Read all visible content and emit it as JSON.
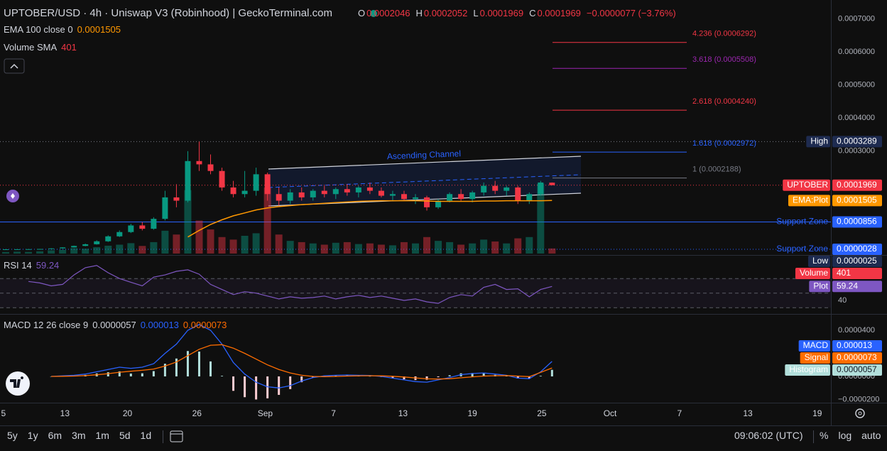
{
  "chart_data": [
    {
      "type": "candlestick",
      "x": [
        0.5,
        1.5,
        2.5,
        3.5,
        4.5,
        5.5,
        6.5,
        7.5,
        8.5,
        9.5,
        10.5,
        11.5,
        12.5,
        13.5,
        14.5,
        15.5,
        16.5,
        17.5,
        18.5,
        19.5,
        20.5,
        21.5,
        22.5,
        23.5,
        24.5,
        25.5,
        26.5,
        27.5,
        28.5,
        29.5,
        30.5,
        31.5,
        32.5,
        33.5,
        34.5,
        35.5,
        36.5,
        37.5,
        38.5,
        39.5,
        40.5,
        41.5,
        42.5,
        43.5,
        44.5,
        45.5,
        46.5,
        47.5,
        48.5
      ],
      "ohlc": [
        [
          2.8e-06,
          3e-06,
          2.5e-06,
          2.8e-06
        ],
        [
          2.8e-06,
          3.2e-06,
          2.7e-06,
          3e-06
        ],
        [
          3e-06,
          3.5e-06,
          2.9e-06,
          3.3e-06
        ],
        [
          3.3e-06,
          4e-06,
          3.1e-06,
          3.8e-06
        ],
        [
          3.8e-06,
          6e-06,
          3.6e-06,
          5.5e-06
        ],
        [
          5.5e-06,
          9e-06,
          5e-06,
          8.5e-06
        ],
        [
          8.5e-06,
          1.4e-05,
          8e-06,
          1.3e-05
        ],
        [
          1.3e-05,
          2e-05,
          1.2e-05,
          1.8e-05
        ],
        [
          1.8e-05,
          3e-05,
          1.7e-05,
          2.7e-05
        ],
        [
          2.7e-05,
          4.5e-05,
          2.5e-05,
          4.2e-05
        ],
        [
          4.2e-05,
          6e-05,
          4e-05,
          5.5e-05
        ],
        [
          5.5e-05,
          8e-05,
          5.2e-05,
          7.5e-05
        ],
        [
          7.5e-05,
          8.5e-05,
          6e-05,
          6.5e-05
        ],
        [
          6.5e-05,
          0.0001,
          6.2e-05,
          9.5e-05
        ],
        [
          9.5e-05,
          0.00018,
          9e-05,
          0.00016
        ],
        [
          0.00016,
          0.0002,
          0.00013,
          0.00015
        ],
        [
          0.00015,
          0.0003,
          0.000145,
          0.00027
        ],
        [
          0.00027,
          0.0003289,
          0.00024,
          0.00026
        ],
        [
          0.00026,
          0.00029,
          0.00023,
          0.00024
        ],
        [
          0.00024,
          0.00025,
          0.00018,
          0.00019
        ],
        [
          0.00019,
          0.00021,
          0.00016,
          0.00017
        ],
        [
          0.00017,
          0.00024,
          0.00016,
          0.00018
        ],
        [
          0.00018,
          0.00025,
          0.000165,
          0.00023
        ],
        [
          0.00023,
          0.000235,
          0.00015,
          0.00017
        ],
        [
          0.00017,
          0.00019,
          0.000135,
          0.00015
        ],
        [
          0.00015,
          0.000185,
          0.00014,
          0.000175
        ],
        [
          0.000175,
          0.00019,
          0.00015,
          0.00016
        ],
        [
          0.00016,
          0.000185,
          0.00015,
          0.00018
        ],
        [
          0.00018,
          0.000195,
          0.00016,
          0.00017
        ],
        [
          0.00017,
          0.00019,
          0.000155,
          0.000185
        ],
        [
          0.000185,
          0.0002,
          0.000165,
          0.000175
        ],
        [
          0.000175,
          0.000195,
          0.00016,
          0.00019
        ],
        [
          0.00019,
          0.000205,
          0.00017,
          0.00018
        ],
        [
          0.00018,
          0.00019,
          0.00016,
          0.000165
        ],
        [
          0.000165,
          0.00018,
          0.00015,
          0.00017
        ],
        [
          0.00017,
          0.00018,
          0.00015,
          0.000155
        ],
        [
          0.000155,
          0.00017,
          0.00014,
          0.00016
        ],
        [
          0.00016,
          0.000165,
          0.00012,
          0.00013
        ],
        [
          0.00013,
          0.000155,
          0.000125,
          0.00015
        ],
        [
          0.00015,
          0.000175,
          0.000145,
          0.00017
        ],
        [
          0.00017,
          0.000185,
          0.00015,
          0.000155
        ],
        [
          0.000155,
          0.00018,
          0.000145,
          0.000175
        ],
        [
          0.000175,
          0.000205,
          0.000165,
          0.000195
        ],
        [
          0.000195,
          0.00021,
          0.00017,
          0.00018
        ],
        [
          0.00018,
          0.000195,
          0.000165,
          0.00019
        ],
        [
          0.00019,
          0.000195,
          0.00014,
          0.00015
        ],
        [
          0.00015,
          0.000175,
          0.00014,
          0.00017
        ],
        [
          0.00017,
          0.00021,
          0.000165,
          0.000205
        ],
        [
          0.0002046,
          0.0002052,
          0.0001969,
          0.0001969
        ]
      ],
      "up_color": "#089981",
      "down_color": "#f23645",
      "xlim": [
        0,
        73
      ],
      "xticks": [
        {
          "value": 0.3,
          "label": "5"
        },
        {
          "value": 5.7,
          "label": "13"
        },
        {
          "value": 11.2,
          "label": "20"
        },
        {
          "value": 17.3,
          "label": "26"
        },
        {
          "value": 23.3,
          "label": "Sep"
        },
        {
          "value": 29.3,
          "label": "7"
        },
        {
          "value": 35.4,
          "label": "13"
        },
        {
          "value": 41.5,
          "label": "19"
        },
        {
          "value": 47.6,
          "label": "25"
        },
        {
          "value": 53.6,
          "label": "Oct"
        },
        {
          "value": 59.7,
          "label": "7"
        },
        {
          "value": 65.7,
          "label": "13"
        },
        {
          "value": 71.8,
          "label": "19"
        }
      ],
      "ylim": [
        -1.01e-05,
        0.0007577
      ],
      "yticks": [
        {
          "value": 0.0007,
          "label": "0.0007000"
        },
        {
          "value": 0.0006,
          "label": "0.0006000"
        },
        {
          "value": 0.0005,
          "label": "0.0005000"
        },
        {
          "value": 0.0004,
          "label": "0.0004000"
        },
        {
          "value": 0.0003,
          "label": "0.0003000"
        }
      ],
      "grid": false,
      "symbol_tag": "UPTOBER",
      "volume": {
        "name": "Volume",
        "color": "#f23645",
        "ylim": [
          0,
          5600
        ],
        "values": [
          120,
          150,
          130,
          180,
          260,
          300,
          420,
          380,
          500,
          620,
          700,
          820,
          600,
          900,
          1800,
          1500,
          5000,
          2600,
          1900,
          1300,
          1100,
          1400,
          1600,
          5200,
          1500,
          1000,
          900,
          800,
          700,
          850,
          900,
          750,
          800,
          700,
          650,
          900,
          800,
          1300,
          1000,
          900,
          700,
          800,
          1100,
          950,
          800,
          1200,
          1300,
          5500,
          401
        ]
      },
      "ema": {
        "name": "EMA:Plot",
        "color": "#ff9800",
        "values": [
          null,
          null,
          null,
          null,
          null,
          null,
          null,
          null,
          null,
          null,
          null,
          null,
          null,
          null,
          null,
          null,
          4e-05,
          6e-05,
          7.8e-05,
          9.2e-05,
          0.000104,
          0.000113,
          0.000122,
          0.000128,
          0.000132,
          0.000135,
          0.000138,
          0.00014,
          0.000142,
          0.000144,
          0.000146,
          0.000148,
          0.000149,
          0.00015,
          0.00015,
          0.00015,
          0.00015,
          0.000149,
          0.000148,
          0.000148,
          0.000148,
          0.000148,
          0.000149,
          0.000149,
          0.00015,
          0.00015,
          0.00015,
          0.00015,
          0.0001505
        ]
      },
      "levels": [
        {
          "name": "High",
          "value": 0.0003289,
          "color": "#1e2b50",
          "line": "dotted",
          "line_color": "#787b86"
        },
        {
          "name": "Support Zone",
          "value": 8.56e-05,
          "color": "#2962ff",
          "line": "solid",
          "line_color": "#2962ff",
          "outside": true
        },
        {
          "name": "Support Zone",
          "value": 2.8e-06,
          "color": "#2962ff",
          "line": "dotted",
          "line_color": "#2962ff",
          "outside": true
        },
        {
          "name": "Low",
          "value": 2.5e-06,
          "color": "#1e2b50"
        }
      ],
      "fib": [
        {
          "label": "4.236 (0.0006292)",
          "value": 0.0006292,
          "color": "#f23645"
        },
        {
          "label": "3.618 (0.0005508)",
          "value": 0.0005508,
          "color": "#9c27b0"
        },
        {
          "label": "2.618 (0.0004240)",
          "value": 0.000424,
          "color": "#f23645"
        },
        {
          "label": "1.618 (0.0002972)",
          "value": 0.0002972,
          "color": "#2962ff"
        },
        {
          "label": "1 (0.0002188)",
          "value": 0.0002188,
          "color": "#787b86"
        }
      ],
      "annotation": "Ascending Channel"
    },
    {
      "type": "line",
      "title": "RSI 14",
      "series": [
        {
          "name": "Plot",
          "color": "#7e57c2",
          "values": [
            null,
            null,
            66,
            64,
            60,
            62,
            75,
            85,
            88,
            78,
            70,
            65,
            60,
            72,
            75,
            80,
            82,
            76,
            62,
            55,
            48,
            52,
            50,
            46,
            42,
            45,
            43,
            44,
            46,
            42,
            45,
            47,
            44,
            46,
            43,
            40,
            42,
            38,
            36,
            44,
            48,
            46,
            58,
            62,
            55,
            56,
            45,
            55,
            59.24
          ]
        }
      ],
      "ylim": [
        23.4,
        99.5
      ],
      "yticks": [
        80,
        40
      ],
      "levels": [
        70,
        50,
        30
      ]
    },
    {
      "type": "macd",
      "title": "MACD 12 26 close 9",
      "series": [
        {
          "name": "Histogram",
          "color": "#b2dfdb",
          "negative_color": "#ffcdd2",
          "values": [
            null,
            null,
            null,
            null,
            0,
            4e-07,
            7e-07,
            1.3e-06,
            2.6e-06,
            3.6e-06,
            4.4e-06,
            2.5e-06,
            2.7e-06,
            4.6e-06,
            1.1e-05,
            1.55e-05,
            2.2e-05,
            2.15e-05,
            1.3e-05,
            5e-07,
            -1.25e-05,
            -1.8e-05,
            -2e-05,
            -1.9e-05,
            -1.6e-05,
            -1.1e-05,
            -5e-06,
            -1e-06,
            7e-07,
            1e-06,
            9e-07,
            5e-07,
            2e-07,
            -5e-07,
            -1.6e-06,
            -2.5e-06,
            -3.2e-06,
            -2.9e-06,
            -7e-07,
            1e-06,
            2.7e-06,
            2.9e-06,
            2.7e-06,
            1.4e-06,
            3e-07,
            -1.8e-06,
            -1.8e-06,
            5e-07,
            5.7e-06
          ]
        },
        {
          "name": "MACD",
          "color": "#2962ff",
          "values": [
            null,
            null,
            null,
            null,
            0,
            5e-07,
            1e-06,
            2e-06,
            4e-06,
            6e-06,
            8e-06,
            7e-06,
            8e-06,
            1.1e-05,
            2e-05,
            2.8e-05,
            4e-05,
            4.5e-05,
            4e-05,
            2.8e-05,
            1.2e-05,
            2e-06,
            -5e-06,
            -9e-06,
            -1e-05,
            -8e-06,
            -4e-06,
            -1e-06,
            5e-07,
            1e-06,
            1.2e-06,
            1e-06,
            8e-07,
            0,
            -1.5e-06,
            -3e-06,
            -4.5e-06,
            -5e-06,
            -3e-06,
            -1e-06,
            1.5e-06,
            2.5e-06,
            3e-06,
            2e-06,
            1e-06,
            -1.5e-06,
            -2e-06,
            4e-06,
            1.3e-05
          ]
        },
        {
          "name": "Signal",
          "color": "#ff6d00",
          "values": [
            null,
            null,
            null,
            null,
            0,
            1e-07,
            3e-07,
            7e-07,
            1.4e-06,
            2.4e-06,
            3.6e-06,
            4.5e-06,
            5.3e-06,
            6.4e-06,
            9e-06,
            1.25e-05,
            1.8e-05,
            2.35e-05,
            2.7e-05,
            2.75e-05,
            2.45e-05,
            2e-05,
            1.5e-05,
            1e-05,
            6e-06,
            3e-06,
            1e-06,
            0,
            -2e-07,
            0,
            3e-07,
            5e-07,
            6e-07,
            5e-07,
            1e-07,
            -5e-07,
            -1.3e-06,
            -2.1e-06,
            -2.3e-06,
            -2e-06,
            -1.2e-06,
            -4e-07,
            3e-07,
            6e-07,
            7e-07,
            3e-07,
            -2e-07,
            3.5e-06,
            7.3e-06
          ]
        }
      ],
      "ylim": [
        -2.34e-05,
        5.23e-05
      ],
      "yticks": [
        {
          "value": 4e-05,
          "label": "0.0000400"
        },
        {
          "value": 0,
          "label": "0.0000000"
        },
        {
          "value": -2e-05,
          "label": "−0.0000200"
        }
      ]
    }
  ],
  "ui": {
    "title": "UPTOBER/USD · 4h · Uniswap V3 (Robinhood) | GeckoTerminal.com",
    "ohlc_keys": [
      "O",
      "H",
      "L",
      "C"
    ],
    "change": "−0.0000077 (−3.76%)",
    "ema_title": "EMA 100 close 0",
    "volume_sma": {
      "label": "Volume SMA",
      "value": 401
    },
    "ranges": [
      "5y",
      "1y",
      "6m",
      "3m",
      "1m",
      "5d",
      "1d"
    ],
    "time": "09:06:02 (UTC)",
    "scale_options": [
      "%",
      "log",
      "auto"
    ]
  }
}
